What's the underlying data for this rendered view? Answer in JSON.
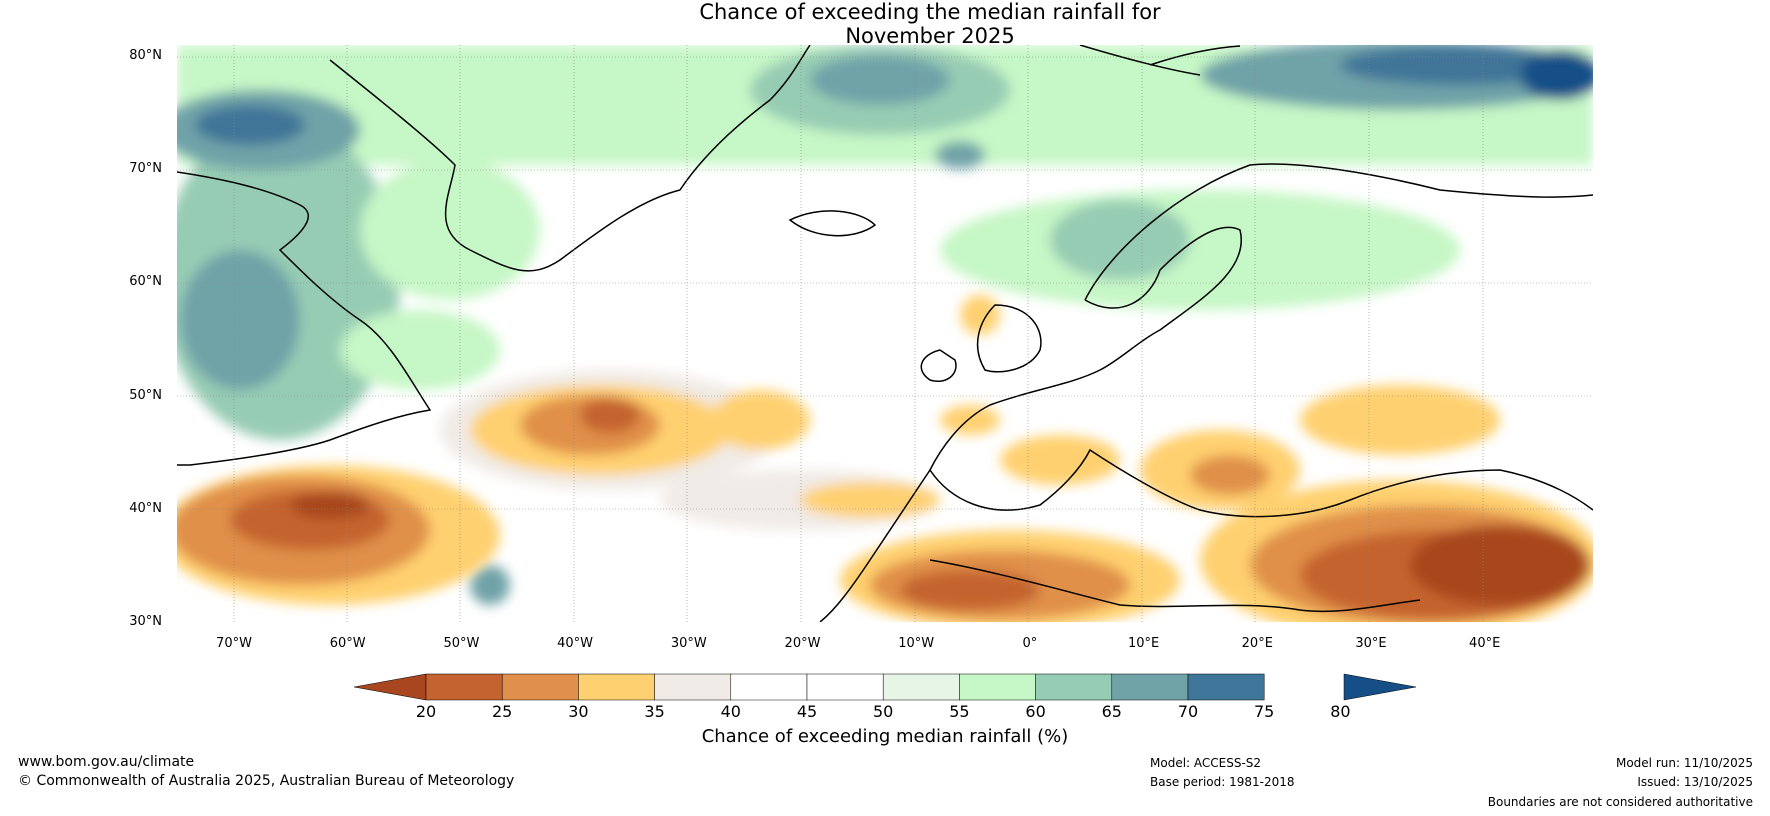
{
  "title": {
    "line1": "Chance of exceeding the median rainfall for",
    "line2": "November 2025"
  },
  "map": {
    "lat_labels": [
      "80°N",
      "70°N",
      "60°N",
      "50°N",
      "40°N",
      "30°N"
    ],
    "lon_labels": [
      "70°W",
      "60°W",
      "50°W",
      "40°W",
      "30°W",
      "20°W",
      "10°W",
      "0°",
      "10°E",
      "20°E",
      "30°E",
      "40°E"
    ],
    "lat_range": [
      30,
      80
    ],
    "lon_range": [
      -75,
      50
    ]
  },
  "colorbar": {
    "title": "Chance of exceeding median rainfall (%)",
    "tick_labels": [
      "20",
      "25",
      "30",
      "35",
      "40",
      "45",
      "50",
      "55",
      "60",
      "65",
      "70",
      "75",
      "80"
    ],
    "colors": [
      "#a8461f",
      "#c4632f",
      "#e0904a",
      "#ffd070",
      "#f0ebe6",
      "#ffffff",
      "#ffffff",
      "#e6f5e6",
      "#c6f7c6",
      "#97ccb4",
      "#6fa3a8",
      "#3f7598",
      "#164f88"
    ]
  },
  "footer": {
    "website": "www.bom.gov.au/climate",
    "copyright": "© Commonwealth of Australia 2025, Australian Bureau of Meteorology",
    "model": "Model: ACCESS-S2",
    "base_period": "Base period: 1981-2018",
    "model_run": "Model run: 11/10/2025",
    "issued": "Issued: 13/10/2025",
    "disclaimer": "Boundaries are not considered authoritative"
  }
}
